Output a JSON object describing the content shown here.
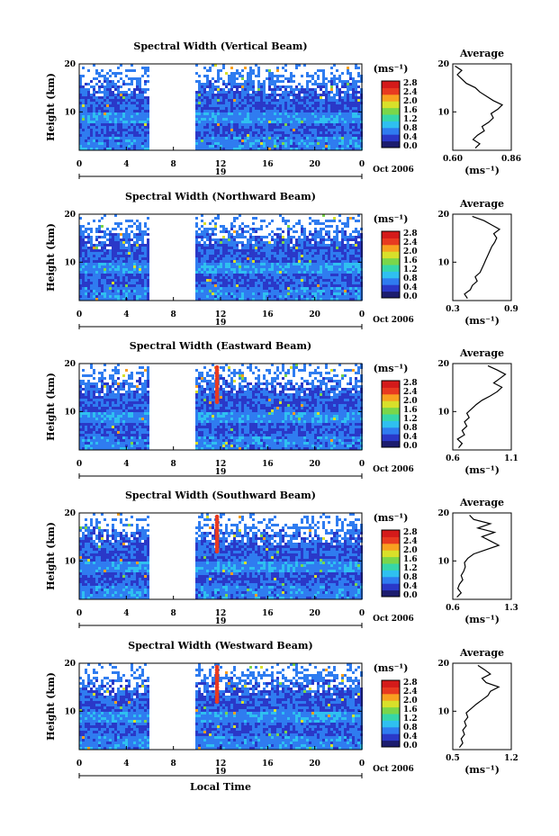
{
  "figure": {
    "xlabel": "Local Time",
    "date_label": "Oct 2006",
    "day_label": "19",
    "ylabel": "Height (km)",
    "colorbar_unit": "(ms⁻¹)",
    "colorbar_ticks": [
      "0.0",
      "0.4",
      "0.8",
      "1.2",
      "1.6",
      "2.0",
      "2.4",
      "2.8"
    ],
    "average_title": "Average",
    "average_unit": "(ms⁻¹)",
    "colorscale": [
      "#1c1c6e",
      "#2a38c8",
      "#2f7cf0",
      "#2fc0f0",
      "#36d6a8",
      "#7ad64a",
      "#d8e02a",
      "#f8a020",
      "#e83a20",
      "#d41a1a"
    ]
  },
  "chart_data": [
    {
      "type": "heatmap",
      "title": "Spectral Width (Vertical Beam)",
      "x_ticks": [
        "0",
        "4",
        "8",
        "12",
        "16",
        "20",
        "0"
      ],
      "y_ticks": [
        "10",
        "20"
      ],
      "xlim": [
        0,
        24
      ],
      "ylim": [
        2,
        20
      ],
      "data_gap": [
        5.8,
        9.8
      ],
      "average_profile": {
        "xlim": [
          0.6,
          0.86
        ],
        "ticks": [
          "0.60",
          "0.86"
        ],
        "x": [
          0.7,
          0.72,
          0.69,
          0.71,
          0.74,
          0.73,
          0.76,
          0.78,
          0.77,
          0.8,
          0.82,
          0.78,
          0.75,
          0.72,
          0.7,
          0.66,
          0.64,
          0.62,
          0.64,
          0.61
        ]
      }
    },
    {
      "type": "heatmap",
      "title": "Spectral Width (Northward Beam)",
      "x_ticks": [
        "0",
        "4",
        "8",
        "12",
        "16",
        "20",
        "0"
      ],
      "y_ticks": [
        "10",
        "20"
      ],
      "xlim": [
        0,
        24
      ],
      "ylim": [
        2,
        20
      ],
      "data_gap": [
        5.8,
        9.8
      ],
      "average_profile": {
        "xlim": [
          0.3,
          0.9
        ],
        "ticks": [
          "0.3",
          "0.9"
        ],
        "x": [
          0.45,
          0.42,
          0.48,
          0.5,
          0.55,
          0.53,
          0.58,
          0.6,
          0.62,
          0.64,
          0.66,
          0.68,
          0.7,
          0.73,
          0.75,
          0.72,
          0.78,
          0.7,
          0.62,
          0.5
        ]
      }
    },
    {
      "type": "heatmap",
      "title": "Spectral Width (Eastward Beam)",
      "x_ticks": [
        "0",
        "4",
        "8",
        "12",
        "16",
        "20",
        "0"
      ],
      "y_ticks": [
        "10",
        "20"
      ],
      "xlim": [
        0,
        24
      ],
      "ylim": [
        2,
        20
      ],
      "data_gap": [
        5.8,
        9.8
      ],
      "average_profile": {
        "xlim": [
          0.6,
          1.1
        ],
        "ticks": [
          "0.6",
          "1.1"
        ],
        "x": [
          0.65,
          0.68,
          0.64,
          0.7,
          0.68,
          0.72,
          0.7,
          0.74,
          0.72,
          0.76,
          0.8,
          0.85,
          0.92,
          0.98,
          1.02,
          0.95,
          1.0,
          1.05,
          0.98,
          0.9
        ]
      }
    },
    {
      "type": "heatmap",
      "title": "Spectral Width (Southward Beam)",
      "x_ticks": [
        "0",
        "4",
        "8",
        "12",
        "16",
        "20",
        "0"
      ],
      "y_ticks": [
        "10",
        "20"
      ],
      "xlim": [
        0,
        24
      ],
      "ylim": [
        2,
        20
      ],
      "data_gap": [
        5.8,
        9.8
      ],
      "average_profile": {
        "xlim": [
          0.6,
          1.3
        ],
        "ticks": [
          "0.6",
          "1.3"
        ],
        "x": [
          0.65,
          0.7,
          0.66,
          0.68,
          0.72,
          0.7,
          0.73,
          0.75,
          0.74,
          0.78,
          0.85,
          1.0,
          1.15,
          1.05,
          0.95,
          1.1,
          0.9,
          1.05,
          0.85,
          0.8
        ]
      }
    },
    {
      "type": "heatmap",
      "title": "Spectral Width (Westward Beam)",
      "x_ticks": [
        "0",
        "4",
        "8",
        "12",
        "16",
        "20",
        "0"
      ],
      "y_ticks": [
        "10",
        "20"
      ],
      "xlim": [
        0,
        24
      ],
      "ylim": [
        2,
        20
      ],
      "data_gap": [
        5.8,
        9.8
      ],
      "average_profile": {
        "xlim": [
          0.5,
          1.2
        ],
        "ticks": [
          "0.5",
          "1.2"
        ],
        "x": [
          0.58,
          0.62,
          0.6,
          0.64,
          0.62,
          0.66,
          0.64,
          0.68,
          0.66,
          0.72,
          0.78,
          0.85,
          0.92,
          0.95,
          1.05,
          0.9,
          0.85,
          0.95,
          0.88,
          0.8
        ]
      }
    }
  ]
}
